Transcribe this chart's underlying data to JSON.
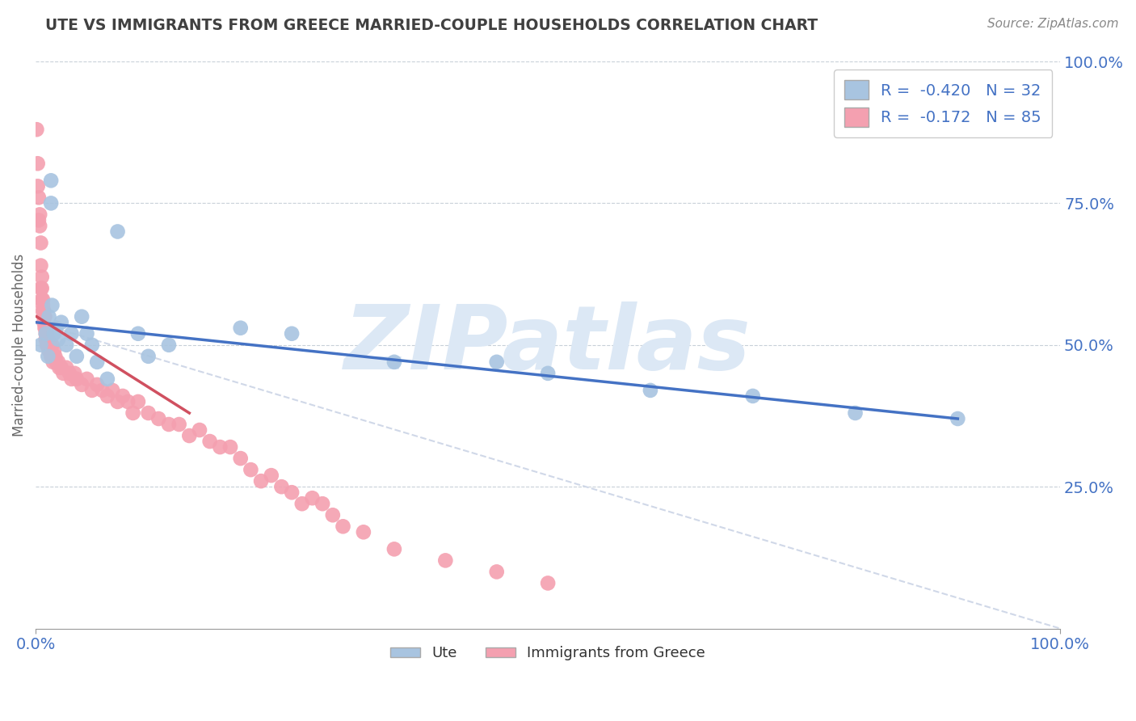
{
  "title": "UTE VS IMMIGRANTS FROM GREECE MARRIED-COUPLE HOUSEHOLDS CORRELATION CHART",
  "source": "Source: ZipAtlas.com",
  "ylabel": "Married-couple Households",
  "legend_bottom": [
    "Ute",
    "Immigrants from Greece"
  ],
  "ute_R": -0.42,
  "ute_N": 32,
  "greece_R": -0.172,
  "greece_N": 85,
  "ute_color": "#a8c4e0",
  "greece_color": "#f4a0b0",
  "trendline_ute_color": "#4472c4",
  "trendline_greece_color": "#d05060",
  "trendline_dashed_color": "#d0d8e8",
  "background_color": "#ffffff",
  "watermark_text": "ZIPatlas",
  "watermark_color": "#dce8f5",
  "title_color": "#404040",
  "axis_label_color": "#4472c4",
  "ute_scatter_x": [
    0.5,
    1.0,
    1.2,
    1.3,
    1.5,
    1.5,
    1.6,
    1.8,
    2.0,
    2.2,
    2.5,
    3.0,
    3.5,
    4.0,
    4.5,
    5.0,
    5.5,
    6.0,
    7.0,
    8.0,
    10.0,
    11.0,
    13.0,
    20.0,
    25.0,
    35.0,
    45.0,
    50.0,
    60.0,
    70.0,
    80.0,
    90.0
  ],
  "ute_scatter_y": [
    50.0,
    52.0,
    48.0,
    55.0,
    75.0,
    79.0,
    57.0,
    52.0,
    53.0,
    51.0,
    54.0,
    50.0,
    52.0,
    48.0,
    55.0,
    52.0,
    50.0,
    47.0,
    44.0,
    70.0,
    52.0,
    48.0,
    50.0,
    53.0,
    52.0,
    47.0,
    47.0,
    45.0,
    42.0,
    41.0,
    38.0,
    37.0
  ],
  "greece_scatter_x": [
    0.1,
    0.2,
    0.2,
    0.3,
    0.3,
    0.4,
    0.4,
    0.5,
    0.5,
    0.5,
    0.6,
    0.6,
    0.6,
    0.7,
    0.7,
    0.7,
    0.8,
    0.8,
    0.8,
    0.9,
    0.9,
    1.0,
    1.0,
    1.0,
    1.1,
    1.1,
    1.2,
    1.2,
    1.3,
    1.3,
    1.4,
    1.5,
    1.5,
    1.6,
    1.6,
    1.7,
    1.8,
    1.9,
    2.0,
    2.2,
    2.3,
    2.5,
    2.7,
    3.0,
    3.3,
    3.5,
    3.8,
    4.0,
    4.5,
    5.0,
    5.5,
    6.0,
    6.5,
    7.0,
    7.5,
    8.0,
    8.5,
    9.0,
    9.5,
    10.0,
    11.0,
    12.0,
    13.0,
    14.0,
    15.0,
    16.0,
    17.0,
    18.0,
    19.0,
    20.0,
    21.0,
    22.0,
    23.0,
    24.0,
    25.0,
    26.0,
    27.0,
    28.0,
    29.0,
    30.0,
    32.0,
    35.0,
    40.0,
    45.0,
    50.0
  ],
  "greece_scatter_y": [
    88.0,
    82.0,
    78.0,
    76.0,
    72.0,
    73.0,
    71.0,
    68.0,
    64.0,
    60.0,
    62.0,
    60.0,
    58.0,
    58.0,
    56.0,
    57.0,
    56.0,
    55.0,
    54.0,
    55.0,
    53.0,
    52.0,
    53.0,
    51.0,
    52.0,
    50.0,
    51.0,
    50.0,
    50.0,
    49.0,
    50.0,
    49.0,
    48.0,
    50.0,
    48.0,
    47.0,
    49.0,
    48.0,
    47.0,
    47.0,
    46.0,
    46.0,
    45.0,
    46.0,
    45.0,
    44.0,
    45.0,
    44.0,
    43.0,
    44.0,
    42.0,
    43.0,
    42.0,
    41.0,
    42.0,
    40.0,
    41.0,
    40.0,
    38.0,
    40.0,
    38.0,
    37.0,
    36.0,
    36.0,
    34.0,
    35.0,
    33.0,
    32.0,
    32.0,
    30.0,
    28.0,
    26.0,
    27.0,
    25.0,
    24.0,
    22.0,
    23.0,
    22.0,
    20.0,
    18.0,
    17.0,
    14.0,
    12.0,
    10.0,
    8.0
  ],
  "xlim": [
    0,
    100
  ],
  "ylim": [
    0,
    100
  ],
  "ute_trendline_x": [
    0,
    90
  ],
  "ute_trendline_y": [
    54.0,
    37.0
  ],
  "greece_trendline_x": [
    0.1,
    15.0
  ],
  "greece_trendline_y": [
    55.0,
    38.0
  ],
  "dashed_line_x": [
    0,
    100
  ],
  "dashed_line_y": [
    54.0,
    0.0
  ]
}
